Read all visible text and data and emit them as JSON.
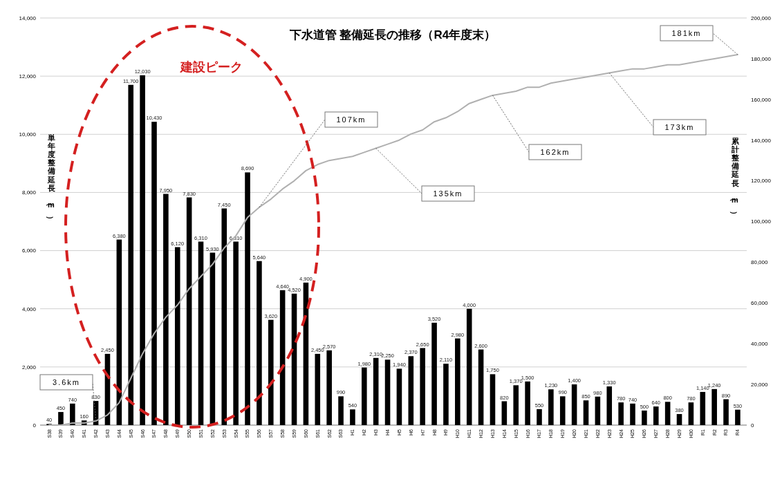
{
  "chart_data": {
    "type": "bar",
    "title": "下水道管 整備延長の推移（R4年度末）",
    "ylabel": "単年度整備延長（m）",
    "y2label": "累計整備延長（m）",
    "categories": [
      "S38",
      "S39",
      "S40",
      "S41",
      "S42",
      "S43",
      "S44",
      "S45",
      "S46",
      "S47",
      "S48",
      "S49",
      "S50",
      "S51",
      "S52",
      "S53",
      "S54",
      "S55",
      "S56",
      "S57",
      "S58",
      "S59",
      "S60",
      "S61",
      "S62",
      "S63",
      "H1",
      "H2",
      "H3",
      "H4",
      "H5",
      "H6",
      "H7",
      "H8",
      "H9",
      "H10",
      "H11",
      "H12",
      "H13",
      "H14",
      "H15",
      "H16",
      "H17",
      "H18",
      "H19",
      "H20",
      "H21",
      "H22",
      "H23",
      "H24",
      "H25",
      "H26",
      "H27",
      "H28",
      "H29",
      "H30",
      "R1",
      "R2",
      "R3",
      "R4"
    ],
    "series": [
      {
        "color": "#000000",
        "values": [
          40,
          450,
          740,
          160,
          830,
          2450,
          6380,
          11700,
          12030,
          10430,
          7950,
          6120,
          7830,
          6310,
          5930,
          7450,
          6310,
          8690,
          5640,
          3620,
          4640,
          4520,
          4900,
          2450,
          2570,
          990,
          540,
          1980,
          2310,
          2250,
          1940,
          2370,
          2650,
          3520,
          2110,
          2980,
          4000,
          2600,
          1750,
          820,
          1370,
          1500,
          550,
          1230,
          990,
          1400,
          850,
          980,
          1330,
          780,
          740,
          500,
          640,
          800,
          380,
          780,
          1140,
          1240,
          890,
          530
        ],
        "value_labels": [
          "40",
          "450",
          "740",
          "160",
          "830",
          "2,450",
          "6,380",
          "11,700",
          "12,030",
          "10,430",
          "7,950",
          "6,120",
          "7,830",
          "6,310",
          "5,930",
          "7,450",
          "6,310",
          "8,690",
          "5,640",
          "3,620",
          "4,640",
          "4,520",
          "4,900",
          "2,450",
          "2,570",
          "990",
          "540",
          "1,980",
          "2,310",
          "2,250",
          "1,940",
          "2,370",
          "2,650",
          "3,520",
          "2,110",
          "2,980",
          "4,000",
          "2,600",
          "1,750",
          "820",
          "1,370",
          "1,500",
          "550",
          "1,230",
          "990",
          "1,400",
          "850",
          "980",
          "1,330",
          "780",
          "740",
          "500",
          "640",
          "800",
          "380",
          "780",
          "1,140",
          "1,240",
          "890",
          "530"
        ]
      },
      {
        "type": "line",
        "axis": "y2",
        "color": "#b0b0b0",
        "values": [
          0,
          0,
          1000,
          1000,
          2000,
          5000,
          11000,
          23000,
          35000,
          45000,
          53000,
          59000,
          67000,
          73000,
          79000,
          87000,
          93000,
          102000,
          107000,
          111000,
          116000,
          120000,
          125000,
          128000,
          130000,
          131000,
          132000,
          134000,
          136000,
          138000,
          140000,
          143000,
          145000,
          149000,
          151000,
          154000,
          158000,
          160000,
          162000,
          163000,
          164000,
          166000,
          166000,
          168000,
          169000,
          170000,
          171000,
          172000,
          173000,
          174000,
          175000,
          175000,
          176000,
          177000,
          177000,
          178000,
          179000,
          180000,
          181000,
          182000
        ]
      }
    ],
    "ylim": [
      0,
      14000
    ],
    "yticks": [
      0,
      {
        "value": 2000,
        "label": "2,000"
      },
      {
        "value": 4000,
        "label": "4,000"
      },
      {
        "value": 6000,
        "label": "6,000"
      },
      {
        "value": 8000,
        "label": "8,000"
      },
      {
        "value": 10000,
        "label": "10,000"
      },
      {
        "value": 12000,
        "label": "12,000"
      },
      {
        "value": 14000,
        "label": "14,000"
      }
    ],
    "y2lim": [
      0,
      200000
    ],
    "y2ticks": [
      0,
      {
        "value": 20000,
        "label": "20,000"
      },
      {
        "value": 40000,
        "label": "40,000"
      },
      {
        "value": 60000,
        "label": "60,000"
      },
      {
        "value": 80000,
        "label": "80,000"
      },
      {
        "value": 100000,
        "label": "100,000"
      },
      {
        "value": 120000,
        "label": "120,000"
      },
      {
        "value": 140000,
        "label": "140,000"
      },
      {
        "value": 160000,
        "label": "160,000"
      },
      {
        "value": 180000,
        "label": "180,000"
      },
      {
        "value": 200000,
        "label": "200,000"
      }
    ],
    "grid": "y",
    "annotations": [
      "建設ピーク",
      "3.6km",
      "107km",
      "135km",
      "162km",
      "173km",
      "181km"
    ]
  }
}
